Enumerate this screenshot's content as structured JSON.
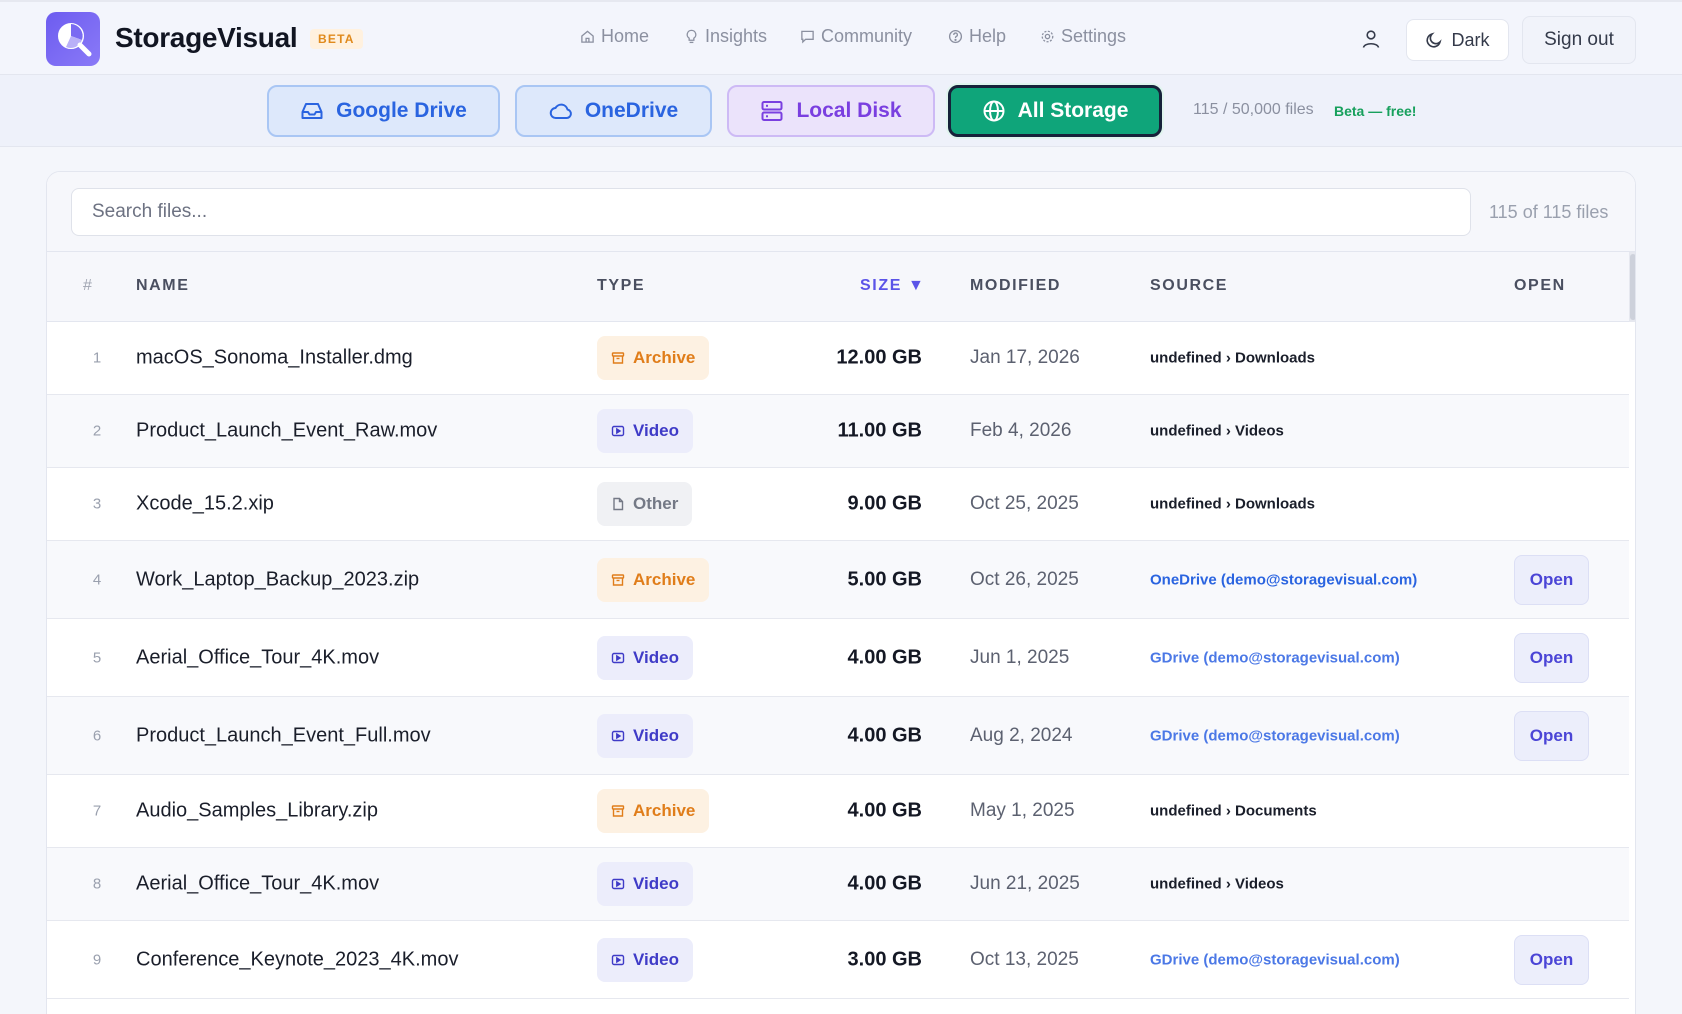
{
  "app": {
    "brand": "StorageVisual",
    "beta_badge": "BETA"
  },
  "nav": [
    {
      "label": "Home",
      "icon": "home-icon"
    },
    {
      "label": "Insights",
      "icon": "lightbulb-icon"
    },
    {
      "label": "Community",
      "icon": "chat-icon"
    },
    {
      "label": "Help",
      "icon": "help-circle-icon"
    },
    {
      "label": "Settings",
      "icon": "gear-icon"
    }
  ],
  "header": {
    "dark_label": "Dark",
    "signout_label": "Sign out"
  },
  "sources": {
    "tabs": [
      {
        "label": "Google Drive",
        "icon": "inbox-icon"
      },
      {
        "label": "OneDrive",
        "icon": "cloud-icon"
      },
      {
        "label": "Local Disk",
        "icon": "server-icon"
      },
      {
        "label": "All Storage",
        "icon": "globe-icon",
        "active": true
      }
    ],
    "file_count": "115 / 50,000 files",
    "beta_note": "Beta — free!"
  },
  "search": {
    "placeholder": "Search files...",
    "value": "",
    "showing": "115 of 115 files"
  },
  "table": {
    "columns": {
      "num": "#",
      "name": "NAME",
      "type": "TYPE",
      "size": "SIZE ▼",
      "modified": "MODIFIED",
      "source": "SOURCE",
      "open": "OPEN"
    },
    "open_label": "Open",
    "rows": [
      {
        "num": "1",
        "name": "macOS_Sonoma_Installer.dmg",
        "type": "Archive",
        "size": "12.00 GB",
        "modified": "Jan 17, 2026",
        "source": "undefined › Downloads",
        "source_kind": "plain",
        "has_open": false
      },
      {
        "num": "2",
        "name": "Product_Launch_Event_Raw.mov",
        "type": "Video",
        "size": "11.00 GB",
        "modified": "Feb 4, 2026",
        "source": "undefined › Videos",
        "source_kind": "plain",
        "has_open": false
      },
      {
        "num": "3",
        "name": "Xcode_15.2.xip",
        "type": "Other",
        "size": "9.00 GB",
        "modified": "Oct 25, 2025",
        "source": "undefined › Downloads",
        "source_kind": "plain",
        "has_open": false
      },
      {
        "num": "4",
        "name": "Work_Laptop_Backup_2023.zip",
        "type": "Archive",
        "size": "5.00 GB",
        "modified": "Oct 26, 2025",
        "source": "OneDrive (demo@storagevisual.com)",
        "source_kind": "onedrive",
        "has_open": true
      },
      {
        "num": "5",
        "name": "Aerial_Office_Tour_4K.mov",
        "type": "Video",
        "size": "4.00 GB",
        "modified": "Jun 1, 2025",
        "source": "GDrive (demo@storagevisual.com)",
        "source_kind": "gdrive",
        "has_open": true
      },
      {
        "num": "6",
        "name": "Product_Launch_Event_Full.mov",
        "type": "Video",
        "size": "4.00 GB",
        "modified": "Aug 2, 2024",
        "source": "GDrive (demo@storagevisual.com)",
        "source_kind": "gdrive",
        "has_open": true
      },
      {
        "num": "7",
        "name": "Audio_Samples_Library.zip",
        "type": "Archive",
        "size": "4.00 GB",
        "modified": "May 1, 2025",
        "source": "undefined › Documents",
        "source_kind": "plain",
        "has_open": false
      },
      {
        "num": "8",
        "name": "Aerial_Office_Tour_4K.mov",
        "type": "Video",
        "size": "4.00 GB",
        "modified": "Jun 21, 2025",
        "source": "undefined › Videos",
        "source_kind": "plain",
        "has_open": false
      },
      {
        "num": "9",
        "name": "Conference_Keynote_2023_4K.mov",
        "type": "Video",
        "size": "3.00 GB",
        "modified": "Oct 13, 2025",
        "source": "GDrive (demo@storagevisual.com)",
        "source_kind": "gdrive",
        "has_open": true
      }
    ]
  }
}
